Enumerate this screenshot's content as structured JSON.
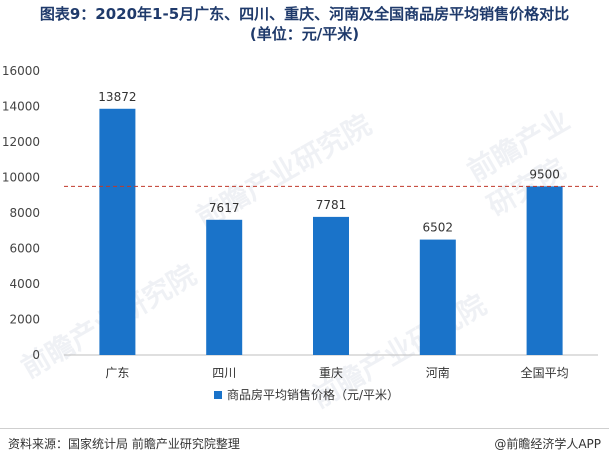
{
  "title": {
    "line1": "图表9：2020年1-5月广东、四川、重庆、河南及全国商品房平均销售价格对比",
    "line2": "(单位：元/平米)"
  },
  "chart_data": {
    "type": "bar",
    "categories": [
      "广东",
      "四川",
      "重庆",
      "河南",
      "全国平均"
    ],
    "series": [
      {
        "name": "商品房平均销售价格（元/平米）",
        "values": [
          13872,
          7617,
          7781,
          6502,
          9500
        ],
        "color": "#1a73c9"
      }
    ],
    "ylim": [
      0,
      16000
    ],
    "yticks": [
      0,
      2000,
      4000,
      6000,
      8000,
      10000,
      12000,
      14000,
      16000
    ],
    "reference_line": {
      "value": 9500,
      "color": "#c0392b",
      "style": "dashed"
    },
    "legend_position": "bottom",
    "grid": false
  },
  "footer": {
    "source": "资料来源：国家统计局 前瞻产业研究院整理",
    "brand": "@前瞻经济学人APP"
  },
  "watermark": "前瞻产业研究院"
}
